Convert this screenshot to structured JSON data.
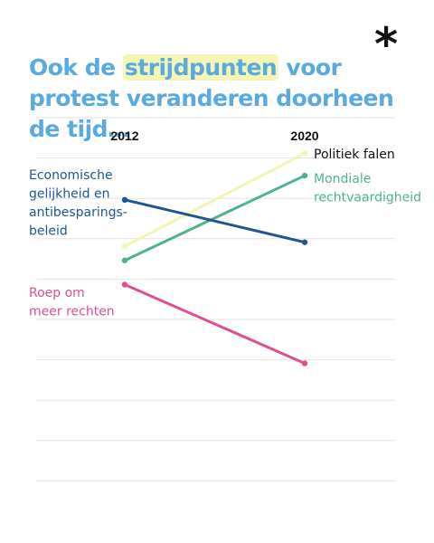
{
  "logo": "*",
  "title": {
    "before": "Ook de ",
    "highlight": "strijdpunten",
    "after": " voor protest veranderen doorheen de tijd…"
  },
  "chart_data": {
    "type": "line",
    "x": [
      "2012",
      "2020"
    ],
    "grid": true,
    "series": [
      {
        "name": "Politiek falen",
        "color": "#f4f4b4",
        "values": [
          4.6,
          9.2
        ],
        "label_lines": [
          "Politiek falen"
        ],
        "label_side": "right"
      },
      {
        "name": "Mondiale rechtvaardigheid",
        "color": "#4db38f",
        "values": [
          3.9,
          8.1
        ],
        "label_lines": [
          "Mondiale",
          "rechtvaardigheid"
        ],
        "label_side": "right"
      },
      {
        "name": "Economische gelijkheid en antibesparingsbeleid",
        "color": "#1f5596",
        "values": [
          6.9,
          4.8
        ],
        "label_lines": [
          "Economische",
          "gelijkheid en",
          "antibesparings-",
          "beleid"
        ],
        "label_side": "left"
      },
      {
        "name": "Roep om meer rechten",
        "color": "#e04d93",
        "values": [
          2.7,
          -1.2
        ],
        "label_lines": [
          "Roep om",
          "meer rechten"
        ],
        "label_side": "left"
      }
    ]
  }
}
